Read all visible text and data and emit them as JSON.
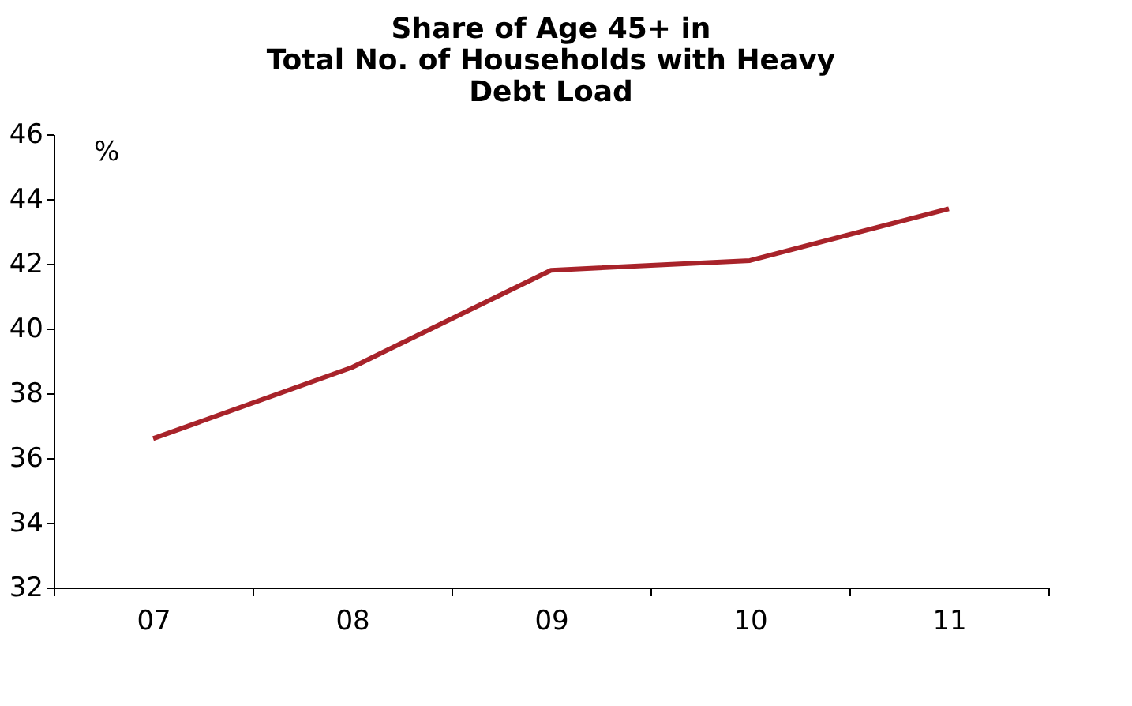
{
  "chart_data": {
    "type": "line",
    "title": "Share of Age 45+ in\nTotal No. of Households with Heavy\nDebt Load",
    "ylabel": "%",
    "categories": [
      "07",
      "08",
      "09",
      "10",
      "11"
    ],
    "series": [
      {
        "color": "#a8232a",
        "values": [
          36.6,
          38.8,
          41.8,
          42.1,
          43.7
        ]
      }
    ],
    "ylim": [
      32,
      46
    ],
    "yticks": [
      32,
      34,
      36,
      38,
      40,
      42,
      44,
      46
    ],
    "grid": false,
    "legend": false,
    "marker": "none",
    "line_style": "solid"
  }
}
